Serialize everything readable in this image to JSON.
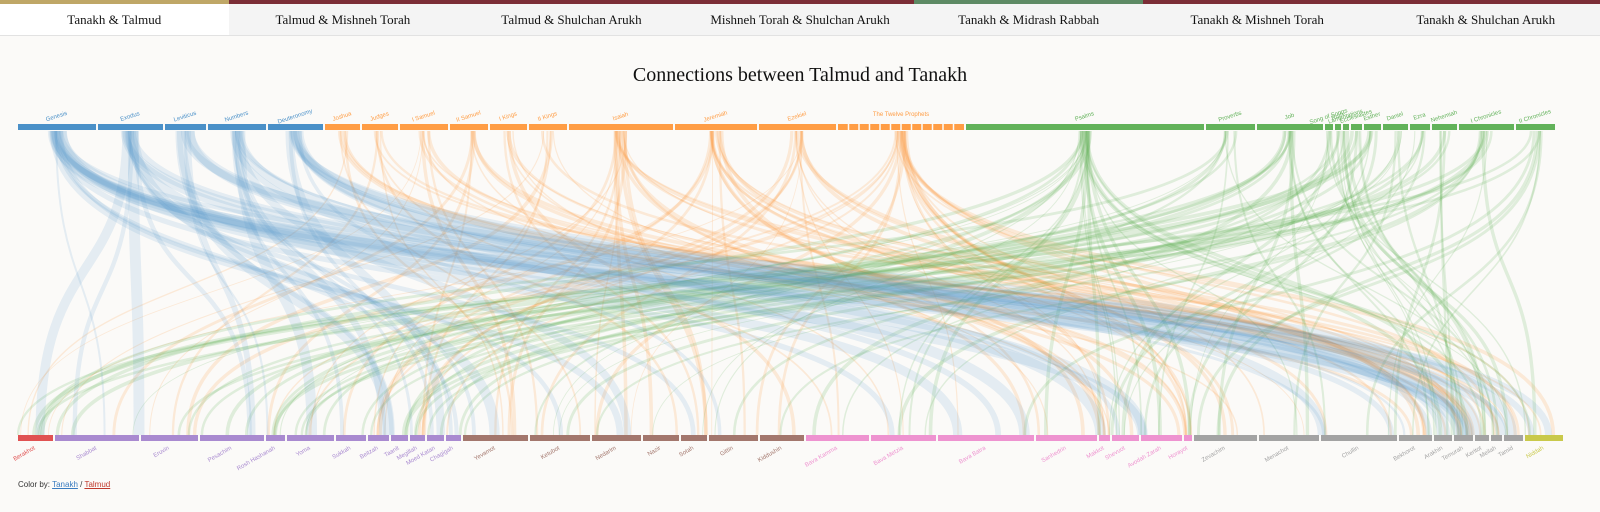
{
  "tabs": [
    {
      "label": "Tanakh & Talmud",
      "color": "#bfa767",
      "active": true
    },
    {
      "label": "Talmud & Mishneh Torah",
      "color": "#7b2d36",
      "active": false
    },
    {
      "label": "Talmud & Shulchan Arukh",
      "color": "#7b2d36",
      "active": false
    },
    {
      "label": "Mishneh Torah & Shulchan Arukh",
      "color": "#7b2d36",
      "active": false
    },
    {
      "label": "Tanakh & Midrash Rabbah",
      "color": "#5d8a64",
      "active": false
    },
    {
      "label": "Tanakh & Mishneh Torah",
      "color": "#7b2d36",
      "active": false
    },
    {
      "label": "Tanakh & Shulchan Arukh",
      "color": "#7b2d36",
      "active": false
    }
  ],
  "title": "Connections between Talmud and Tanakh",
  "top_bar": [
    {
      "color": "#4a90c8",
      "books": [
        "Genesis",
        "Exodus",
        "Leviticus",
        "Numbers",
        "Deuteronomy"
      ]
    },
    {
      "color": "#ff9d45",
      "books": [
        "Joshua",
        "Judges",
        "I Samuel",
        "II Samuel",
        "I Kings",
        "II Kings",
        "Isaiah",
        "Jeremiah",
        "Ezekiel",
        "The Twelve Prophets"
      ]
    },
    {
      "color": "#62b25a",
      "books": [
        "Psalms",
        "Proverbs",
        "Job",
        "Song of Songs",
        "Ruth",
        "Lamentations",
        "Ecclesiastes",
        "Esther",
        "Daniel",
        "Ezra",
        "Nehemiah",
        "I Chronicles",
        "II Chronicles"
      ]
    }
  ],
  "bottom_bar": [
    {
      "color": "#e05252",
      "books": [
        "Berakhot"
      ]
    },
    {
      "color": "#a98ad0",
      "books": [
        "Shabbat",
        "Eruvin",
        "Pesachim",
        "Rosh Hashanah",
        "Yoma",
        "Sukkah",
        "Beitzah",
        "Taanit",
        "Megillah",
        "Moed Katan",
        "Chagigah"
      ]
    },
    {
      "color": "#a3776d",
      "books": [
        "Yevamot",
        "Ketubot",
        "Nedarim",
        "Nazir",
        "Sotah",
        "Gittin",
        "Kiddushin"
      ]
    },
    {
      "color": "#ee93d0",
      "books": [
        "Bava Kamma",
        "Bava Metzia",
        "Bava Batra",
        "Sanhedrin",
        "Makkot",
        "Shevuot",
        "Avodah Zarah",
        "Horayot"
      ]
    },
    {
      "color": "#a3a3a3",
      "books": [
        "Zevachim",
        "Menachot",
        "Chullin",
        "Bekhorot",
        "Arakhin",
        "Temurah",
        "Keritot",
        "Meilah",
        "Tamid"
      ]
    },
    {
      "color": "#c9c94b",
      "books": [
        "Niddah"
      ]
    }
  ],
  "footer": {
    "label": "Color by:",
    "options": [
      {
        "text": "Tanakh",
        "color": "#3a7cc0"
      },
      {
        "text": "Talmud",
        "color": "#c0392b"
      }
    ],
    "separator": "/"
  }
}
